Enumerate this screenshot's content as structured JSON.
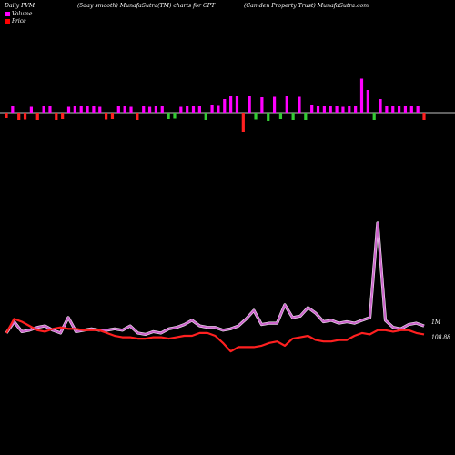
{
  "header": {
    "left": "Daily PVM",
    "center": "(5day smooth) MunafaSutra(TM) charts for CPT",
    "right": "(Camden Property Trust) MunafaSutra.com"
  },
  "legend": [
    {
      "label": "Volume",
      "color": "#ff00ff"
    },
    {
      "label": "Price",
      "color": "#ff0000"
    }
  ],
  "colors": {
    "background": "#000000",
    "volume_line": "#cc66cc",
    "price_line": "#ff2020",
    "bar_up": "#ff00ff",
    "bar_down": "#33cc33",
    "bar_down_red": "#ff2020"
  },
  "chart_data": [
    {
      "type": "bar",
      "title": "",
      "note": "PVM bars around a zero baseline",
      "values": [
        -1,
        1,
        -1,
        -1,
        1,
        -1,
        1,
        1,
        -1,
        -1,
        1,
        1,
        1,
        1,
        1,
        1,
        -1,
        -1,
        1,
        1,
        1,
        -1,
        1,
        1,
        1,
        1,
        -1,
        -1,
        1,
        1,
        1,
        1,
        -1,
        1,
        1,
        2,
        3,
        3,
        -3,
        1,
        -1,
        2,
        -1,
        2,
        -1,
        2,
        -1,
        3,
        -1,
        1,
        1,
        1,
        1,
        1,
        1,
        1,
        1,
        6,
        4,
        -1,
        2,
        1,
        1,
        1,
        1,
        1,
        1,
        -1
      ],
      "magnitudes": [
        1.2,
        1.4,
        1.6,
        1.5,
        1.3,
        1.6,
        1.4,
        1.5,
        1.6,
        1.4,
        1.3,
        1.5,
        1.4,
        1.6,
        1.5,
        1.3,
        1.5,
        1.4,
        1.5,
        1.4,
        1.3,
        1.6,
        1.4,
        1.3,
        1.5,
        1.4,
        1.4,
        1.3,
        1.3,
        1.6,
        1.5,
        1.4,
        1.6,
        1.8,
        1.7,
        3.0,
        3.6,
        3.6,
        4.2,
        3.6,
        1.5,
        3.4,
        1.8,
        3.5,
        1.4,
        3.6,
        1.6,
        3.5,
        1.6,
        1.8,
        1.5,
        1.4,
        1.5,
        1.4,
        1.3,
        1.4,
        1.5,
        7.5,
        5.0,
        1.6,
        3.0,
        1.6,
        1.5,
        1.4,
        1.5,
        1.6,
        1.4,
        1.6
      ],
      "down_color": [
        "red",
        "green",
        "red",
        "red",
        "",
        "red",
        "",
        "",
        "red",
        "red",
        "",
        "",
        "",
        "",
        "",
        "",
        "red",
        "red",
        "",
        "",
        "",
        "red",
        "",
        "",
        "",
        "",
        "green",
        "green",
        "",
        "",
        "",
        "",
        "green",
        "",
        "",
        "",
        "",
        "",
        "red",
        "",
        "green",
        "",
        "green",
        "",
        "green",
        "",
        "green",
        "",
        "green",
        "",
        "",
        "",
        "",
        "",
        "",
        "",
        "",
        "",
        "",
        "green",
        "",
        "",
        "",
        "",
        "",
        "",
        "",
        "red"
      ]
    },
    {
      "type": "line",
      "series": [
        {
          "name": "Volume",
          "label": "1M",
          "color": "#cc66cc",
          "values": [
            22,
            30,
            23,
            24,
            26,
            27,
            24,
            22,
            33,
            23,
            24,
            25,
            24,
            24,
            25,
            24,
            27,
            22,
            21,
            23,
            22,
            25,
            26,
            28,
            31,
            27,
            26,
            26,
            24,
            25,
            27,
            32,
            38,
            28,
            29,
            29,
            42,
            33,
            34,
            40,
            36,
            30,
            31,
            29,
            30,
            29,
            31,
            33,
            100,
            31,
            26,
            25,
            28,
            29,
            27
          ]
        },
        {
          "name": "Price",
          "label": "108.88",
          "color": "#ff2020",
          "values": [
            22,
            32,
            30,
            27,
            24,
            23,
            25,
            26,
            25,
            25,
            24,
            24,
            24,
            22,
            20,
            19,
            19,
            18,
            18,
            19,
            19,
            18,
            19,
            20,
            20,
            22,
            22,
            20,
            15,
            9,
            12,
            12,
            12,
            13,
            15,
            16,
            13,
            18,
            19,
            20,
            17,
            16,
            16,
            17,
            17,
            20,
            22,
            21,
            24,
            24,
            23,
            24,
            24,
            22,
            21
          ]
        }
      ]
    }
  ]
}
